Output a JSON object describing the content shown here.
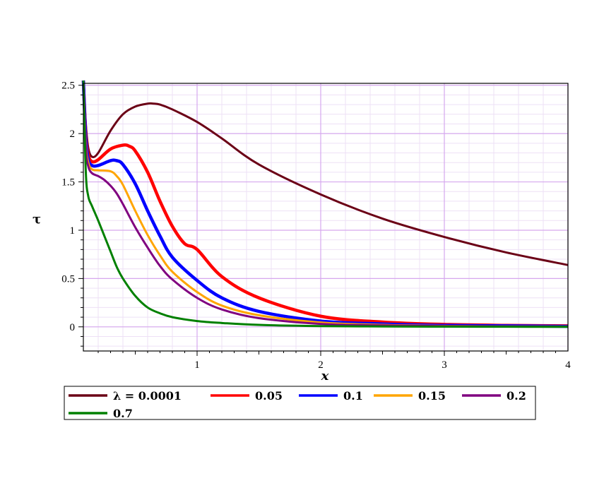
{
  "chart_data": {
    "type": "line",
    "xlabel": "x",
    "ylabel": "τ",
    "xlim": [
      0.08,
      4.0
    ],
    "ylim": [
      -0.25,
      2.52
    ],
    "x_ticks": [
      "1",
      "2",
      "3",
      "4"
    ],
    "y_ticks": [
      "2.5",
      "2",
      "1.5",
      "1",
      "0.5",
      "0"
    ],
    "grid": true,
    "legend_placement": "bottom",
    "legend_prefix": "λ = ",
    "series": [
      {
        "name": "0.0001",
        "color": "#6b0016",
        "x": [
          0.08,
          0.1,
          0.12,
          0.15,
          0.2,
          0.3,
          0.4,
          0.5,
          0.6,
          0.65,
          0.7,
          0.8,
          1.0,
          1.2,
          1.5,
          2.0,
          2.5,
          3.0,
          3.5,
          4.0
        ],
        "y": [
          2.55,
          2.1,
          1.85,
          1.76,
          1.8,
          2.03,
          2.2,
          2.28,
          2.31,
          2.31,
          2.3,
          2.25,
          2.12,
          1.95,
          1.68,
          1.37,
          1.12,
          0.93,
          0.77,
          0.64
        ]
      },
      {
        "name": "0.05",
        "color": "#ff0000",
        "x": [
          0.08,
          0.1,
          0.12,
          0.15,
          0.2,
          0.3,
          0.4,
          0.45,
          0.5,
          0.6,
          0.7,
          0.8,
          0.9,
          1.0,
          1.2,
          1.5,
          2.0,
          2.5,
          3.0,
          3.5,
          4.0
        ],
        "y": [
          2.55,
          2.0,
          1.78,
          1.71,
          1.73,
          1.84,
          1.88,
          1.87,
          1.82,
          1.6,
          1.3,
          1.04,
          0.86,
          0.8,
          0.52,
          0.3,
          0.11,
          0.05,
          0.025,
          0.015,
          0.01
        ]
      },
      {
        "name": "0.1",
        "color": "#0000ff",
        "x": [
          0.08,
          0.1,
          0.12,
          0.15,
          0.2,
          0.3,
          0.35,
          0.4,
          0.5,
          0.6,
          0.7,
          0.8,
          1.0,
          1.2,
          1.5,
          2.0,
          2.5,
          3.0,
          3.5,
          4.0
        ],
        "y": [
          2.55,
          1.95,
          1.73,
          1.67,
          1.67,
          1.72,
          1.72,
          1.68,
          1.48,
          1.2,
          0.94,
          0.72,
          0.48,
          0.3,
          0.16,
          0.06,
          0.03,
          0.015,
          0.01,
          0.005
        ]
      },
      {
        "name": "0.15",
        "color": "#ffa500",
        "x": [
          0.08,
          0.1,
          0.12,
          0.15,
          0.2,
          0.3,
          0.35,
          0.4,
          0.5,
          0.6,
          0.7,
          0.8,
          1.0,
          1.2,
          1.5,
          2.0,
          2.5,
          3.0,
          3.5,
          4.0
        ],
        "y": [
          2.55,
          1.9,
          1.7,
          1.63,
          1.62,
          1.61,
          1.56,
          1.47,
          1.2,
          0.95,
          0.74,
          0.57,
          0.36,
          0.22,
          0.12,
          0.045,
          0.02,
          0.01,
          0.005,
          0.003
        ]
      },
      {
        "name": "0.2",
        "color": "#800080",
        "x": [
          0.08,
          0.1,
          0.12,
          0.15,
          0.2,
          0.25,
          0.3,
          0.35,
          0.4,
          0.5,
          0.6,
          0.7,
          0.8,
          1.0,
          1.2,
          1.5,
          2.0,
          2.5,
          3.0,
          3.5,
          4.0
        ],
        "y": [
          2.55,
          1.85,
          1.66,
          1.59,
          1.56,
          1.52,
          1.46,
          1.38,
          1.27,
          1.03,
          0.82,
          0.63,
          0.49,
          0.3,
          0.18,
          0.09,
          0.03,
          0.015,
          0.008,
          0.004,
          0.002
        ]
      },
      {
        "name": "0.7",
        "color": "#008000",
        "x": [
          0.08,
          0.1,
          0.12,
          0.15,
          0.2,
          0.25,
          0.3,
          0.35,
          0.4,
          0.5,
          0.6,
          0.7,
          0.8,
          1.0,
          1.2,
          1.5,
          2.0,
          2.5,
          3.0,
          3.5,
          4.0
        ],
        "y": [
          2.55,
          1.6,
          1.35,
          1.25,
          1.1,
          0.94,
          0.78,
          0.62,
          0.5,
          0.32,
          0.2,
          0.14,
          0.1,
          0.06,
          0.04,
          0.02,
          0.008,
          0.004,
          0.002,
          0.001,
          0.0
        ]
      }
    ]
  }
}
